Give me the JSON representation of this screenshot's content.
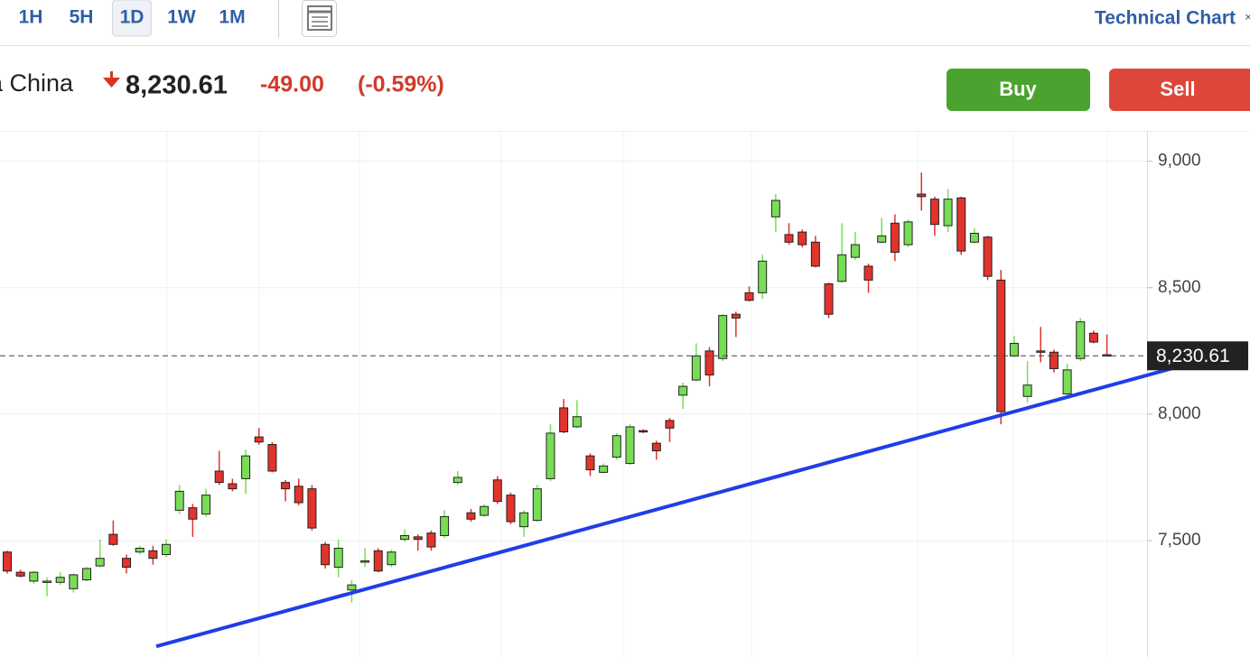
{
  "header": {
    "tabs": [
      "1H",
      "5H",
      "1D",
      "1W",
      "1M"
    ],
    "link": "Technical Chart",
    "name": "a China",
    "price": "8,230.61",
    "change": "-49.00",
    "change_pct": "(-0.59%)",
    "buy": "Buy",
    "sell": "Sell"
  },
  "chart_data": {
    "type": "candlestick",
    "up_color": "#78dd56",
    "down_color": "#e2332c",
    "open": [
      7455,
      7375,
      7340,
      7335,
      7335,
      7310,
      7345,
      7400,
      7525,
      7430,
      7455,
      7460,
      7445,
      7620,
      7630,
      7605,
      7775,
      7725,
      7745,
      7910,
      7880,
      7730,
      7715,
      7705,
      7485,
      7395,
      7305,
      7415,
      7460,
      7405,
      7505,
      7515,
      7530,
      7520,
      7730,
      7610,
      7600,
      7740,
      7680,
      7555,
      7580,
      7745,
      8025,
      7950,
      7835,
      7770,
      7830,
      7805,
      7935,
      7885,
      7975,
      8075,
      8135,
      8250,
      8220,
      8395,
      8480,
      8480,
      8780,
      8710,
      8720,
      8680,
      8515,
      8525,
      8620,
      8585,
      8680,
      8755,
      8670,
      8870,
      8850,
      8745,
      8855,
      8680,
      8700,
      8530,
      8230,
      8070,
      8250,
      8245,
      8080,
      8220,
      8320,
      8235
    ],
    "close": [
      7380,
      7360,
      7375,
      7340,
      7355,
      7365,
      7390,
      7430,
      7485,
      7395,
      7470,
      7430,
      7485,
      7695,
      7585,
      7680,
      7730,
      7705,
      7835,
      7890,
      7775,
      7705,
      7650,
      7550,
      7405,
      7470,
      7325,
      7420,
      7380,
      7455,
      7520,
      7505,
      7475,
      7595,
      7750,
      7585,
      7635,
      7655,
      7575,
      7610,
      7705,
      7925,
      7930,
      7990,
      7780,
      7795,
      7915,
      7950,
      7930,
      7855,
      7945,
      8110,
      8230,
      8155,
      8390,
      8380,
      8450,
      8605,
      8845,
      8680,
      8670,
      8585,
      8395,
      8630,
      8670,
      8530,
      8705,
      8640,
      8760,
      8860,
      8750,
      8850,
      8645,
      8715,
      8545,
      8010,
      8280,
      8115,
      8245,
      8180,
      8175,
      8365,
      8285,
      8230.61
    ],
    "high": [
      7460,
      7385,
      7380,
      7355,
      7375,
      7370,
      7395,
      7505,
      7580,
      7445,
      7480,
      7480,
      7505,
      7720,
      7645,
      7705,
      7855,
      7745,
      7860,
      7945,
      7890,
      7740,
      7745,
      7720,
      7495,
      7505,
      7345,
      7470,
      7470,
      7465,
      7545,
      7525,
      7540,
      7620,
      7775,
      7625,
      7645,
      7755,
      7690,
      7620,
      7720,
      7960,
      8060,
      8055,
      7845,
      7805,
      7925,
      7960,
      7940,
      7895,
      7985,
      8125,
      8280,
      8265,
      8395,
      8405,
      8505,
      8630,
      8870,
      8755,
      8730,
      8705,
      8520,
      8755,
      8720,
      8595,
      8775,
      8790,
      8770,
      8955,
      8860,
      8890,
      8860,
      8735,
      8705,
      8570,
      8310,
      8210,
      8345,
      8255,
      8200,
      8380,
      8330,
      8315
    ],
    "low": [
      7370,
      7355,
      7330,
      7280,
      7325,
      7295,
      7340,
      7395,
      7480,
      7370,
      7445,
      7405,
      7435,
      7605,
      7515,
      7595,
      7720,
      7695,
      7685,
      7880,
      7770,
      7655,
      7640,
      7540,
      7390,
      7355,
      7255,
      7395,
      7375,
      7395,
      7495,
      7460,
      7460,
      7510,
      7720,
      7575,
      7595,
      7645,
      7565,
      7515,
      7575,
      7735,
      7925,
      7945,
      7755,
      7765,
      7820,
      7800,
      7925,
      7820,
      7890,
      8020,
      8130,
      8110,
      8210,
      8305,
      8445,
      8455,
      8720,
      8670,
      8660,
      8580,
      8380,
      8520,
      8610,
      8480,
      8675,
      8605,
      8660,
      8805,
      8705,
      8720,
      8630,
      8675,
      8530,
      7960,
      8225,
      8045,
      8205,
      8165,
      8075,
      8210,
      8280,
      8230
    ],
    "ylim": [
      7040,
      9120
    ],
    "yticks": [
      {
        "value": 7500,
        "label": "7,500"
      },
      {
        "value": 8000,
        "label": "8,000"
      },
      {
        "value": 8500,
        "label": "8,500"
      },
      {
        "value": 9000,
        "label": "9,000"
      }
    ],
    "grid": true,
    "last_price": {
      "value": 8230.61,
      "label": "8,230.61"
    },
    "trendline": {
      "color": "#1f3ee8",
      "x": [
        11.25,
        90.5
      ],
      "y": [
        7082,
        8218
      ]
    }
  }
}
